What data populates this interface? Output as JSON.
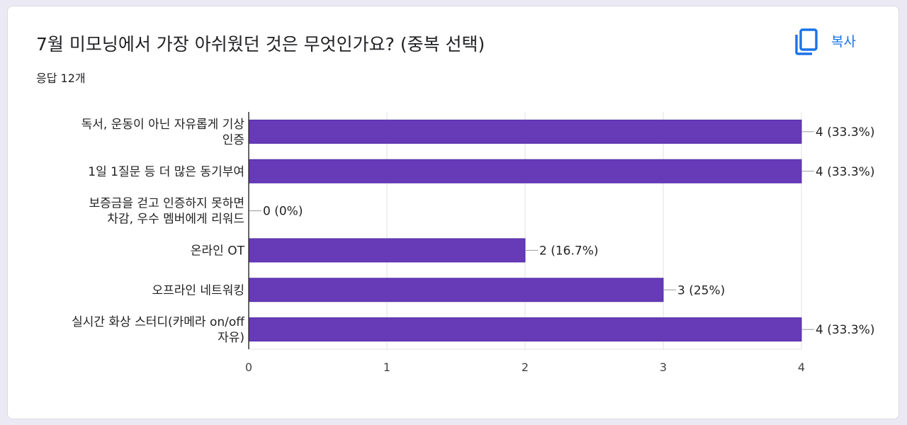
{
  "header": {
    "title": "7월 미모닝에서 가장 아쉬웠던 것은 무엇인가요? (중복 선택)",
    "response_count": "응답 12개",
    "copy_label": "복사",
    "copy_icon": "copy-icon"
  },
  "colors": {
    "bar": "#673ab7",
    "bar_border": "#512da8",
    "accent": "#1a73e8",
    "grid": "#e0e0e0"
  },
  "chart_data": {
    "type": "bar",
    "orientation": "horizontal",
    "categories": [
      [
        "독서, 운동이 아닌 자유롭게 기상",
        "인증"
      ],
      [
        "1일 1질문 등 더 많은 동기부여"
      ],
      [
        "보증금을 걷고 인증하지 못하면",
        "차감, 우수 멤버에게 리워드"
      ],
      [
        "온라인 OT"
      ],
      [
        "오프라인 네트워킹"
      ],
      [
        "실시간 화상 스터디(카메라 on/off",
        "자유)"
      ]
    ],
    "values": [
      4,
      4,
      0,
      2,
      3,
      4
    ],
    "value_labels": [
      "4 (33.3%)",
      "4 (33.3%)",
      "0 (0%)",
      "2 (16.7%)",
      "3 (25%)",
      "4 (33.3%)"
    ],
    "xlim": [
      0,
      4
    ],
    "xticks": [
      0,
      1,
      2,
      3,
      4
    ],
    "grid": true,
    "title": "",
    "xlabel": "",
    "ylabel": ""
  }
}
